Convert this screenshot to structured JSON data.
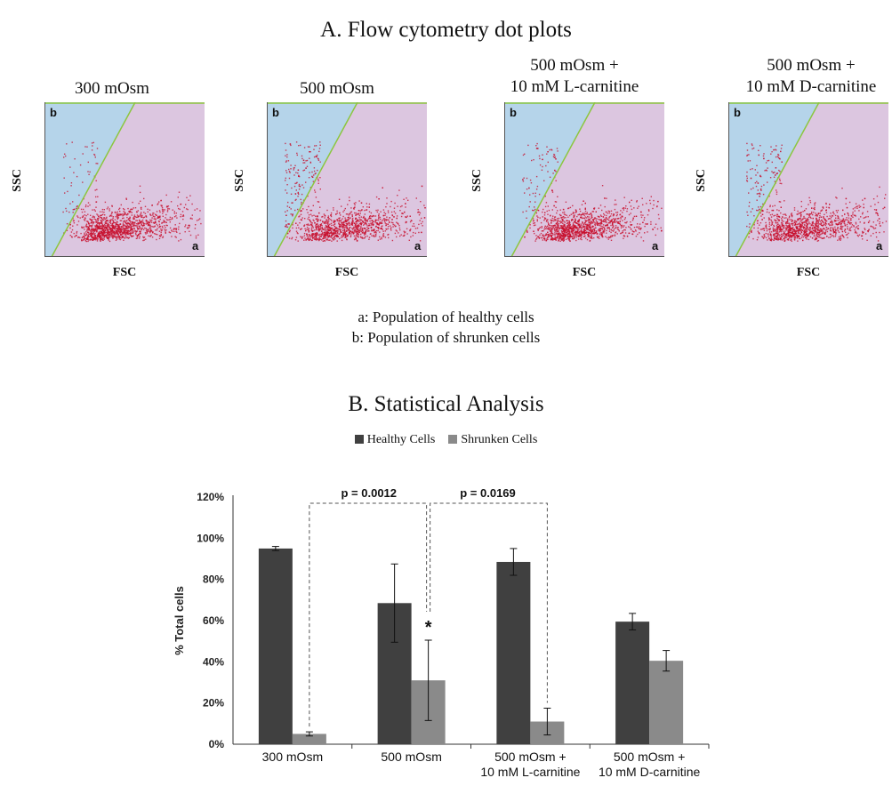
{
  "sectionA": {
    "title": "A. Flow cytometry dot plots",
    "panels": [
      {
        "title_lines": [
          "300 mOsm"
        ],
        "x_label": "FSC",
        "y_label": "SSC",
        "gate_a": "a",
        "gate_b": "b"
      },
      {
        "title_lines": [
          "500 mOsm"
        ],
        "x_label": "FSC",
        "y_label": "SSC",
        "gate_a": "a",
        "gate_b": "b"
      },
      {
        "title_lines": [
          "500 mOsm +",
          "10 mM L-carnitine"
        ],
        "x_label": "FSC",
        "y_label": "SSC",
        "gate_a": "a",
        "gate_b": "b"
      },
      {
        "title_lines": [
          "500 mOsm +",
          "10 mM D-carnitine"
        ],
        "x_label": "FSC",
        "y_label": "SSC",
        "gate_a": "a",
        "gate_b": "b"
      }
    ],
    "legend": [
      "a: Population of healthy cells",
      "b: Population of shrunken cells"
    ]
  },
  "sectionB": {
    "title": "B. Statistical Analysis"
  },
  "colors": {
    "healthy": "#404040",
    "shrunken": "#8a8a8a",
    "dot": "#c8102e",
    "gate_b_bg": "#b5d4ea",
    "gate_a_bg": "#dcc6e0",
    "gate_line": "#8cc63f"
  },
  "chart_data": {
    "type": "bar",
    "categories": [
      "300 mOsm",
      "500 mOsm",
      "500 mOsm +\n10 mM L-carnitine",
      "500 mOsm +\n10 mM D-carnitine"
    ],
    "series": [
      {
        "name": "Healthy Cells",
        "values": [
          95,
          68.5,
          88.5,
          59.5
        ],
        "errors": [
          1,
          19,
          6.5,
          4
        ]
      },
      {
        "name": "Shrunken Cells",
        "values": [
          5,
          31,
          11,
          40.5
        ],
        "errors": [
          1,
          19.5,
          6.5,
          5
        ]
      }
    ],
    "ylabel": "% Total cells",
    "xlabel": "",
    "ylim": [
      0,
      120
    ],
    "yticks": [
      "0%",
      "20%",
      "40%",
      "60%",
      "80%",
      "100%",
      "120%"
    ],
    "annotations": [
      "p = 0.0012",
      "p = 0.0169",
      "*"
    ],
    "legend_position": "top"
  }
}
